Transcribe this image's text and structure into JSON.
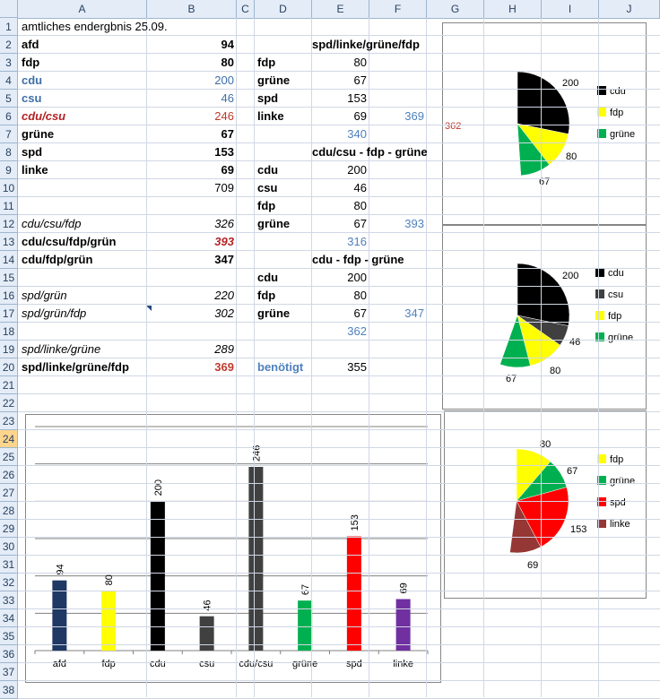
{
  "columns": [
    "A",
    "B",
    "C",
    "D",
    "E",
    "F",
    "G",
    "H",
    "I",
    "J"
  ],
  "rows": [
    "1",
    "2",
    "3",
    "4",
    "5",
    "6",
    "7",
    "8",
    "9",
    "10",
    "11",
    "12",
    "13",
    "14",
    "15",
    "16",
    "17",
    "18",
    "19",
    "20",
    "21",
    "22",
    "23",
    "24",
    "25",
    "26",
    "27",
    "28",
    "29",
    "30",
    "31",
    "32",
    "33",
    "34",
    "35",
    "36",
    "37",
    "38"
  ],
  "selected_row": "24",
  "sheet": {
    "title": "amtliches endergbnis 25.09.",
    "colA": [
      {
        "row": 2,
        "label": "afd",
        "value": "94",
        "style": "b"
      },
      {
        "row": 3,
        "label": "fdp",
        "value": "80",
        "style": "b"
      },
      {
        "row": 4,
        "label": "cdu",
        "value": "200",
        "style": "blue"
      },
      {
        "row": 5,
        "label": "csu",
        "value": "46",
        "style": "blue"
      },
      {
        "row": 6,
        "label": "cdu/csu",
        "value": "246",
        "style": "red"
      },
      {
        "row": 7,
        "label": "grüne",
        "value": "67",
        "style": "b"
      },
      {
        "row": 8,
        "label": "spd",
        "value": "153",
        "style": "b"
      },
      {
        "row": 9,
        "label": "linke",
        "value": "69",
        "style": "b"
      },
      {
        "row": 10,
        "label": "",
        "value": "709",
        "style": "plain"
      },
      {
        "row": 12,
        "label": "cdu/csu/fdp",
        "value": "326",
        "style": "i"
      },
      {
        "row": 13,
        "label": "cdu/csu/fdp/grün",
        "value": "393",
        "style": "b13"
      },
      {
        "row": 14,
        "label": "cdu/fdp/grün",
        "value": "347",
        "style": "b"
      },
      {
        "row": 16,
        "label": "spd/grün",
        "value": "220",
        "style": "i"
      },
      {
        "row": 17,
        "label": "spd/grün/fdp",
        "value": "302",
        "style": "i"
      },
      {
        "row": 19,
        "label": "spd/linke/grüne",
        "value": "289",
        "style": "i"
      },
      {
        "row": 20,
        "label": "spd/linke/grüne/fdp",
        "value": "369",
        "style": "b20"
      }
    ],
    "colD": [
      {
        "row": 2,
        "label": "spd/linke/grüne/fdp",
        "value": "",
        "f": ""
      },
      {
        "row": 3,
        "label": "fdp",
        "value": "80",
        "f": ""
      },
      {
        "row": 4,
        "label": "grüne",
        "value": "67",
        "f": ""
      },
      {
        "row": 5,
        "label": "spd",
        "value": "153",
        "f": ""
      },
      {
        "row": 6,
        "label": "linke",
        "value": "69",
        "f": "369"
      },
      {
        "row": 7,
        "label": "",
        "value": "340",
        "f": ""
      },
      {
        "row": 8,
        "label": "cdu/csu - fdp - grüne",
        "value": "",
        "f": ""
      },
      {
        "row": 9,
        "label": "cdu",
        "value": "200",
        "f": ""
      },
      {
        "row": 10,
        "label": "csu",
        "value": "46",
        "f": ""
      },
      {
        "row": 11,
        "label": "fdp",
        "value": "80",
        "f": ""
      },
      {
        "row": 12,
        "label": "grüne",
        "value": "67",
        "f": "393"
      },
      {
        "row": 13,
        "label": "",
        "value": "316",
        "f": ""
      },
      {
        "row": 14,
        "label": "cdu - fdp - grüne",
        "value": "",
        "f": ""
      },
      {
        "row": 15,
        "label": "cdu",
        "value": "200",
        "f": ""
      },
      {
        "row": 16,
        "label": "fdp",
        "value": "80",
        "f": ""
      },
      {
        "row": 17,
        "label": "grüne",
        "value": "67",
        "f": "347"
      },
      {
        "row": 18,
        "label": "",
        "value": "362",
        "f": ""
      },
      {
        "row": 20,
        "label": "benötigt",
        "value": "355",
        "f": ""
      }
    ]
  },
  "chart_data": [
    {
      "type": "pie",
      "values": [
        200,
        80,
        67
      ],
      "labels": [
        "200",
        "80",
        "67"
      ],
      "legend": [
        "cdu",
        "fdp",
        "grüne"
      ],
      "colors": [
        "#000000",
        "#ffff00",
        "#00b050"
      ],
      "side_label": "362"
    },
    {
      "type": "pie",
      "values": [
        200,
        46,
        80,
        67
      ],
      "labels": [
        "200",
        "46",
        "80",
        "67"
      ],
      "legend": [
        "cdu",
        "csu",
        "fdp",
        "grüne"
      ],
      "colors": [
        "#000000",
        "#404040",
        "#ffff00",
        "#00b050"
      ]
    },
    {
      "type": "pie",
      "values": [
        80,
        67,
        153,
        69
      ],
      "labels": [
        "80",
        "67",
        "153",
        "69"
      ],
      "legend": [
        "fdp",
        "grüne",
        "spd",
        "linke"
      ],
      "colors": [
        "#ffff00",
        "#00b050",
        "#ff0000",
        "#953735"
      ]
    },
    {
      "type": "bar",
      "categories": [
        "afd",
        "fdp",
        "cdu",
        "csu",
        "cdu/csu",
        "grüne",
        "spd",
        "linke"
      ],
      "values": [
        94,
        80,
        200,
        46,
        246,
        67,
        153,
        69
      ],
      "colors": [
        "#1f3864",
        "#ffff00",
        "#000000",
        "#404040",
        "#404040",
        "#00b050",
        "#ff0000",
        "#7030a0"
      ],
      "gridlines": 6
    }
  ]
}
